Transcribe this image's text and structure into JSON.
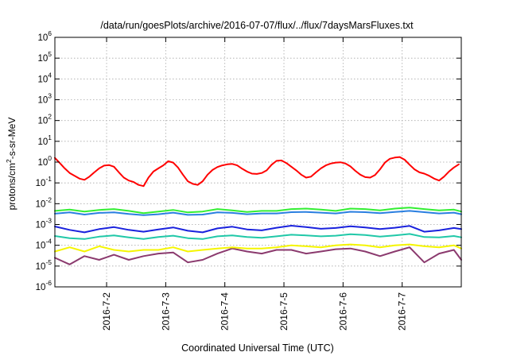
{
  "chart_data": {
    "type": "line",
    "title": "/data/run/goesPlots/archive/2016-07-07/flux/../flux/7daysMarsFluxes.txt",
    "xlabel": "Coordinated Universal Time (UTC)",
    "ylabel": {
      "prefix": "protons/cm",
      "sup": "2",
      "suffix": "-s-sr-MeV"
    },
    "yscale": "log",
    "ylim": [
      1e-06,
      1000000
    ],
    "y_ticks": [
      {
        "exp": "-6",
        "value": 1e-06
      },
      {
        "exp": "-5",
        "value": 1e-05
      },
      {
        "exp": "-4",
        "value": 0.0001
      },
      {
        "exp": "-3",
        "value": 0.001
      },
      {
        "exp": "-2",
        "value": 0.01
      },
      {
        "exp": "-1",
        "value": 0.1
      },
      {
        "exp": "0",
        "value": 1
      },
      {
        "exp": "1",
        "value": 10
      },
      {
        "exp": "2",
        "value": 100
      },
      {
        "exp": "3",
        "value": 1000
      },
      {
        "exp": "4",
        "value": 10000
      },
      {
        "exp": "5",
        "value": 100000
      },
      {
        "exp": "6",
        "value": 1000000
      }
    ],
    "xlim": [
      "2016-07-01T03:00",
      "2016-07-08T00:00"
    ],
    "x_ticks": [
      "2016-7-2",
      "2016-7-3",
      "2016-7-4",
      "2016-7-5",
      "2016-7-6",
      "2016-7-7"
    ],
    "x_tick_values": [
      "2016-07-02T00:00",
      "2016-07-03T00:00",
      "2016-07-04T00:00",
      "2016-07-05T00:00",
      "2016-07-06T00:00",
      "2016-07-07T00:00"
    ],
    "grid": true,
    "legend": "none",
    "series": [
      {
        "color": "#ff0000",
        "x": [
          "2016-07-01T03:00",
          "2016-07-01T05:00",
          "2016-07-01T07:00",
          "2016-07-01T09:00",
          "2016-07-01T11:00",
          "2016-07-01T13:00",
          "2016-07-01T15:00",
          "2016-07-01T17:00",
          "2016-07-01T19:00",
          "2016-07-01T21:00",
          "2016-07-01T23:00",
          "2016-07-02T01:00",
          "2016-07-02T03:00",
          "2016-07-02T05:00",
          "2016-07-02T07:00",
          "2016-07-02T09:00",
          "2016-07-02T11:00",
          "2016-07-02T13:00",
          "2016-07-02T15:00",
          "2016-07-02T17:00",
          "2016-07-02T19:00",
          "2016-07-02T21:00",
          "2016-07-02T23:00",
          "2016-07-03T01:00",
          "2016-07-03T03:00",
          "2016-07-03T05:00",
          "2016-07-03T07:00",
          "2016-07-03T09:00",
          "2016-07-03T11:00",
          "2016-07-03T13:00",
          "2016-07-03T15:00",
          "2016-07-03T17:00",
          "2016-07-03T19:00",
          "2016-07-03T21:00",
          "2016-07-03T23:00",
          "2016-07-04T01:00",
          "2016-07-04T03:00",
          "2016-07-04T05:00",
          "2016-07-04T07:00",
          "2016-07-04T09:00",
          "2016-07-04T11:00",
          "2016-07-04T13:00",
          "2016-07-04T15:00",
          "2016-07-04T17:00",
          "2016-07-04T19:00",
          "2016-07-04T21:00",
          "2016-07-04T23:00",
          "2016-07-05T01:00",
          "2016-07-05T03:00",
          "2016-07-05T05:00",
          "2016-07-05T07:00",
          "2016-07-05T09:00",
          "2016-07-05T11:00",
          "2016-07-05T13:00",
          "2016-07-05T15:00",
          "2016-07-05T17:00",
          "2016-07-05T19:00",
          "2016-07-05T21:00",
          "2016-07-05T23:00",
          "2016-07-06T01:00",
          "2016-07-06T03:00",
          "2016-07-06T05:00",
          "2016-07-06T07:00",
          "2016-07-06T09:00",
          "2016-07-06T11:00",
          "2016-07-06T13:00",
          "2016-07-06T15:00",
          "2016-07-06T17:00",
          "2016-07-06T19:00",
          "2016-07-06T21:00",
          "2016-07-06T23:00",
          "2016-07-07T01:00",
          "2016-07-07T03:00",
          "2016-07-07T05:00",
          "2016-07-07T07:00",
          "2016-07-07T09:00",
          "2016-07-07T11:00",
          "2016-07-07T13:00",
          "2016-07-07T15:00",
          "2016-07-07T17:00",
          "2016-07-07T19:00",
          "2016-07-07T21:00",
          "2016-07-07T23:00"
        ],
        "y": [
          1.6,
          0.9,
          0.5,
          0.3,
          0.22,
          0.16,
          0.14,
          0.2,
          0.32,
          0.5,
          0.68,
          0.72,
          0.6,
          0.32,
          0.18,
          0.13,
          0.11,
          0.08,
          0.07,
          0.18,
          0.35,
          0.5,
          0.7,
          1.1,
          0.95,
          0.55,
          0.25,
          0.12,
          0.09,
          0.08,
          0.12,
          0.25,
          0.42,
          0.58,
          0.7,
          0.78,
          0.82,
          0.7,
          0.48,
          0.35,
          0.28,
          0.27,
          0.3,
          0.4,
          0.75,
          1.15,
          1.2,
          0.9,
          0.6,
          0.4,
          0.25,
          0.18,
          0.2,
          0.32,
          0.5,
          0.7,
          0.85,
          0.95,
          0.98,
          0.85,
          0.62,
          0.38,
          0.25,
          0.19,
          0.18,
          0.24,
          0.45,
          0.95,
          1.45,
          1.65,
          1.75,
          1.3,
          0.75,
          0.45,
          0.32,
          0.28,
          0.22,
          0.16,
          0.13,
          0.2,
          0.35,
          0.55,
          0.78
        ]
      },
      {
        "color": "#33ee33",
        "x": [
          "2016-07-01T03:00",
          "2016-07-01T09:00",
          "2016-07-01T15:00",
          "2016-07-01T21:00",
          "2016-07-02T03:00",
          "2016-07-02T09:00",
          "2016-07-02T15:00",
          "2016-07-02T21:00",
          "2016-07-03T03:00",
          "2016-07-03T09:00",
          "2016-07-03T15:00",
          "2016-07-03T21:00",
          "2016-07-04T03:00",
          "2016-07-04T09:00",
          "2016-07-04T15:00",
          "2016-07-04T21:00",
          "2016-07-05T03:00",
          "2016-07-05T09:00",
          "2016-07-05T15:00",
          "2016-07-05T21:00",
          "2016-07-06T03:00",
          "2016-07-06T09:00",
          "2016-07-06T15:00",
          "2016-07-06T21:00",
          "2016-07-07T03:00",
          "2016-07-07T09:00",
          "2016-07-07T15:00",
          "2016-07-07T21:00",
          "2016-07-08T00:00"
        ],
        "y": [
          0.0045,
          0.0052,
          0.0042,
          0.005,
          0.0055,
          0.0045,
          0.0035,
          0.0042,
          0.005,
          0.0038,
          0.0042,
          0.0055,
          0.0048,
          0.004,
          0.0045,
          0.0045,
          0.0055,
          0.0058,
          0.0052,
          0.0045,
          0.0058,
          0.0055,
          0.0048,
          0.0058,
          0.0065,
          0.0055,
          0.0048,
          0.0052,
          0.0042
        ]
      },
      {
        "color": "#2a7fe0",
        "x": [
          "2016-07-01T03:00",
          "2016-07-01T09:00",
          "2016-07-01T15:00",
          "2016-07-01T21:00",
          "2016-07-02T03:00",
          "2016-07-02T09:00",
          "2016-07-02T15:00",
          "2016-07-02T21:00",
          "2016-07-03T03:00",
          "2016-07-03T09:00",
          "2016-07-03T15:00",
          "2016-07-03T21:00",
          "2016-07-04T03:00",
          "2016-07-04T09:00",
          "2016-07-04T15:00",
          "2016-07-04T21:00",
          "2016-07-05T03:00",
          "2016-07-05T09:00",
          "2016-07-05T15:00",
          "2016-07-05T21:00",
          "2016-07-06T03:00",
          "2016-07-06T09:00",
          "2016-07-06T15:00",
          "2016-07-06T21:00",
          "2016-07-07T03:00",
          "2016-07-07T09:00",
          "2016-07-07T15:00",
          "2016-07-07T21:00",
          "2016-07-08T00:00"
        ],
        "y": [
          0.0033,
          0.0038,
          0.003,
          0.0036,
          0.0038,
          0.0032,
          0.0028,
          0.0031,
          0.0037,
          0.0029,
          0.003,
          0.0038,
          0.0036,
          0.0031,
          0.0034,
          0.0034,
          0.0039,
          0.004,
          0.0037,
          0.0034,
          0.0041,
          0.0039,
          0.0035,
          0.004,
          0.0045,
          0.0039,
          0.0034,
          0.0037,
          0.0031
        ]
      },
      {
        "color": "#1a22dd",
        "x": [
          "2016-07-01T03:00",
          "2016-07-01T09:00",
          "2016-07-01T15:00",
          "2016-07-01T21:00",
          "2016-07-02T03:00",
          "2016-07-02T09:00",
          "2016-07-02T15:00",
          "2016-07-02T21:00",
          "2016-07-03T03:00",
          "2016-07-03T09:00",
          "2016-07-03T15:00",
          "2016-07-03T21:00",
          "2016-07-04T03:00",
          "2016-07-04T09:00",
          "2016-07-04T15:00",
          "2016-07-04T21:00",
          "2016-07-05T03:00",
          "2016-07-05T09:00",
          "2016-07-05T15:00",
          "2016-07-05T21:00",
          "2016-07-06T03:00",
          "2016-07-06T09:00",
          "2016-07-06T15:00",
          "2016-07-06T21:00",
          "2016-07-07T03:00",
          "2016-07-07T09:00",
          "2016-07-07T15:00",
          "2016-07-07T21:00",
          "2016-07-08T00:00"
        ],
        "y": [
          0.0008,
          0.00055,
          0.00042,
          0.0006,
          0.00075,
          0.00055,
          0.00045,
          0.00058,
          0.00072,
          0.0005,
          0.00042,
          0.00065,
          0.00078,
          0.00058,
          0.00052,
          0.0007,
          0.00088,
          0.00075,
          0.00062,
          0.00068,
          0.00082,
          0.00072,
          0.0006,
          0.0007,
          0.00085,
          0.00045,
          0.00052,
          0.00068,
          0.0006
        ]
      },
      {
        "color": "#20c8a8",
        "x": [
          "2016-07-01T03:00",
          "2016-07-01T09:00",
          "2016-07-01T15:00",
          "2016-07-01T21:00",
          "2016-07-02T03:00",
          "2016-07-02T09:00",
          "2016-07-02T15:00",
          "2016-07-02T21:00",
          "2016-07-03T03:00",
          "2016-07-03T09:00",
          "2016-07-03T15:00",
          "2016-07-03T21:00",
          "2016-07-04T03:00",
          "2016-07-04T09:00",
          "2016-07-04T15:00",
          "2016-07-04T21:00",
          "2016-07-05T03:00",
          "2016-07-05T09:00",
          "2016-07-05T15:00",
          "2016-07-05T21:00",
          "2016-07-06T03:00",
          "2016-07-06T09:00",
          "2016-07-06T15:00",
          "2016-07-06T21:00",
          "2016-07-07T03:00",
          "2016-07-07T09:00",
          "2016-07-07T15:00",
          "2016-07-07T21:00",
          "2016-07-08T00:00"
        ],
        "y": [
          0.00028,
          0.00022,
          0.0002,
          0.00026,
          0.0003,
          0.00024,
          0.0002,
          0.00025,
          0.00029,
          0.00022,
          0.0002,
          0.00027,
          0.0003,
          0.00025,
          0.00023,
          0.00027,
          0.00032,
          0.0003,
          0.00027,
          0.00029,
          0.00034,
          0.00031,
          0.00026,
          0.0003,
          0.00035,
          0.00025,
          0.00024,
          0.00028,
          0.00024
        ]
      },
      {
        "color": "#f5f500",
        "x": [
          "2016-07-01T03:00",
          "2016-07-01T09:00",
          "2016-07-01T15:00",
          "2016-07-01T21:00",
          "2016-07-02T03:00",
          "2016-07-02T09:00",
          "2016-07-02T15:00",
          "2016-07-02T21:00",
          "2016-07-03T03:00",
          "2016-07-03T09:00",
          "2016-07-03T15:00",
          "2016-07-03T21:00",
          "2016-07-04T03:00",
          "2016-07-04T09:00",
          "2016-07-04T15:00",
          "2016-07-04T21:00",
          "2016-07-05T03:00",
          "2016-07-05T09:00",
          "2016-07-05T15:00",
          "2016-07-05T21:00",
          "2016-07-06T03:00",
          "2016-07-06T09:00",
          "2016-07-06T15:00",
          "2016-07-06T21:00",
          "2016-07-07T03:00",
          "2016-07-07T09:00",
          "2016-07-07T15:00",
          "2016-07-07T21:00",
          "2016-07-08T00:00"
        ],
        "y": [
          5e-05,
          8e-05,
          5e-05,
          9e-05,
          6e-05,
          5e-05,
          6e-05,
          6e-05,
          8e-05,
          5e-05,
          6e-05,
          7e-05,
          8e-05,
          7e-05,
          7e-05,
          8e-05,
          0.0001,
          9e-05,
          8e-05,
          0.0001,
          0.00011,
          0.0001,
          8e-05,
          0.0001,
          0.00011,
          9e-05,
          8e-05,
          0.0001,
          7e-05
        ]
      },
      {
        "color": "#8b3a6e",
        "x": [
          "2016-07-01T03:00",
          "2016-07-01T09:00",
          "2016-07-01T15:00",
          "2016-07-01T21:00",
          "2016-07-02T03:00",
          "2016-07-02T09:00",
          "2016-07-02T15:00",
          "2016-07-02T21:00",
          "2016-07-03T03:00",
          "2016-07-03T09:00",
          "2016-07-03T15:00",
          "2016-07-03T21:00",
          "2016-07-04T03:00",
          "2016-07-04T09:00",
          "2016-07-04T15:00",
          "2016-07-04T21:00",
          "2016-07-05T03:00",
          "2016-07-05T09:00",
          "2016-07-05T15:00",
          "2016-07-05T21:00",
          "2016-07-06T03:00",
          "2016-07-06T09:00",
          "2016-07-06T15:00",
          "2016-07-06T21:00",
          "2016-07-07T03:00",
          "2016-07-07T09:00",
          "2016-07-07T15:00",
          "2016-07-07T21:00",
          "2016-07-08T00:00"
        ],
        "y": [
          2.5e-05,
          1.2e-05,
          3e-05,
          2e-05,
          3.5e-05,
          2e-05,
          3e-05,
          4e-05,
          4.5e-05,
          1.5e-05,
          2e-05,
          4e-05,
          7e-05,
          5e-05,
          4e-05,
          6e-05,
          6e-05,
          4e-05,
          5e-05,
          6.5e-05,
          7e-05,
          5e-05,
          3e-05,
          5e-05,
          8e-05,
          1.5e-05,
          4e-05,
          6e-05,
          2e-05
        ]
      }
    ]
  }
}
